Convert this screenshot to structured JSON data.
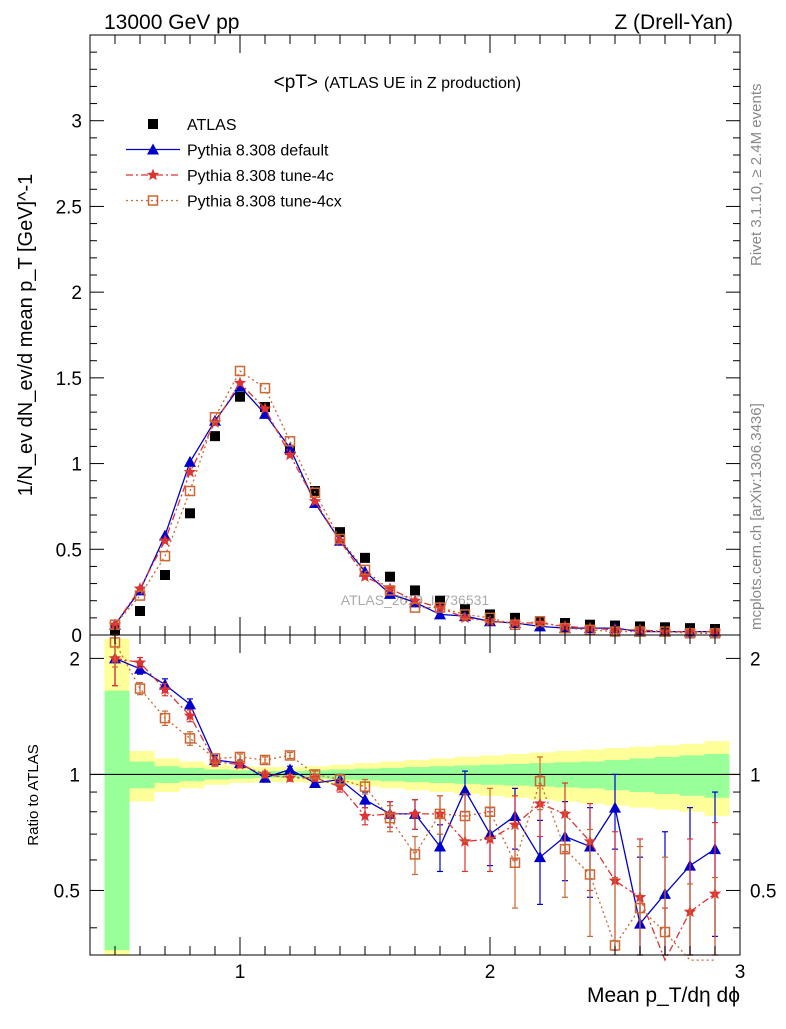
{
  "header": {
    "left": "13000 GeV pp",
    "right": "Z (Drell-Yan)"
  },
  "side": {
    "rivet": "Rivet 3.1.10, ≥ 2.4M events",
    "mcplots": "mcplots.cern.ch [arXiv:1306.3436]"
  },
  "chart_data": [
    {
      "type": "line",
      "title": "<pT>",
      "subtitle": "(ATLAS UE in Z production)",
      "ylabel": "1/N_ev dN_ev/d mean p_T [GeV]^-1",
      "xlim": [
        0.4,
        3.0
      ],
      "ylim": [
        0,
        3.5
      ],
      "grid": false,
      "legend_position": "top-left",
      "watermark": "ATLAS_2019_I1736531",
      "x": [
        0.5,
        0.6,
        0.7,
        0.8,
        0.9,
        1.0,
        1.1,
        1.2,
        1.3,
        1.4,
        1.5,
        1.6,
        1.7,
        1.8,
        1.9,
        2.0,
        2.1,
        2.2,
        2.3,
        2.4,
        2.5,
        2.6,
        2.7,
        2.8,
        2.9
      ],
      "series": [
        {
          "name": "ATLAS",
          "color": "#000000",
          "values": [
            0.03,
            0.14,
            0.35,
            0.71,
            1.16,
            1.39,
            1.33,
            1.08,
            0.84,
            0.6,
            0.45,
            0.34,
            0.26,
            0.2,
            0.15,
            0.12,
            0.1,
            0.08,
            0.07,
            0.06,
            0.055,
            0.05,
            0.045,
            0.04,
            0.035
          ]
        },
        {
          "name": "Pythia 8.308 default",
          "color": "#0000cc",
          "values": [
            0.06,
            0.26,
            0.58,
            1.01,
            1.25,
            1.45,
            1.29,
            1.09,
            0.77,
            0.55,
            0.37,
            0.24,
            0.19,
            0.12,
            0.11,
            0.08,
            0.07,
            0.05,
            0.04,
            0.04,
            0.04,
            0.02,
            0.02,
            0.02,
            0.02
          ]
        },
        {
          "name": "Pythia 8.308 tune-4c",
          "color": "#dd3333",
          "values": [
            0.06,
            0.27,
            0.55,
            0.95,
            1.24,
            1.47,
            1.32,
            1.05,
            0.78,
            0.55,
            0.34,
            0.27,
            0.2,
            0.16,
            0.1,
            0.08,
            0.07,
            0.07,
            0.05,
            0.04,
            0.03,
            0.03,
            0.02,
            0.02,
            0.02
          ]
        },
        {
          "name": "Pythia 8.308 tune-4cx",
          "color": "#cc6633",
          "values": [
            0.06,
            0.23,
            0.46,
            0.84,
            1.27,
            1.54,
            1.44,
            1.13,
            0.83,
            0.56,
            0.38,
            0.26,
            0.16,
            0.16,
            0.12,
            0.1,
            0.06,
            0.08,
            0.04,
            0.03,
            0.02,
            0.02,
            0.02,
            0.01,
            0.01
          ]
        }
      ]
    },
    {
      "type": "line",
      "ylabel": "Ratio to ATLAS",
      "xlabel": "Mean p_T/dη dϕ",
      "xlim": [
        0.4,
        3.0
      ],
      "ylim": [
        0.34,
        2.3
      ],
      "grid": false,
      "x": [
        0.5,
        0.6,
        0.7,
        0.8,
        0.9,
        1.0,
        1.1,
        1.2,
        1.3,
        1.4,
        1.5,
        1.6,
        1.7,
        1.8,
        1.9,
        2.0,
        2.1,
        2.2,
        2.3,
        2.4,
        2.5,
        2.6,
        2.7,
        2.8,
        2.9
      ],
      "band_inner": [
        0.65,
        0.08,
        0.05,
        0.04,
        0.03,
        0.025,
        0.02,
        0.02,
        0.025,
        0.03,
        0.035,
        0.04,
        0.045,
        0.05,
        0.055,
        0.06,
        0.065,
        0.07,
        0.075,
        0.08,
        0.09,
        0.1,
        0.11,
        0.12,
        0.13
      ],
      "band_outer": [
        1.25,
        0.15,
        0.1,
        0.08,
        0.06,
        0.05,
        0.045,
        0.045,
        0.05,
        0.06,
        0.07,
        0.08,
        0.09,
        0.1,
        0.11,
        0.12,
        0.13,
        0.14,
        0.15,
        0.16,
        0.17,
        0.18,
        0.19,
        0.2,
        0.22
      ],
      "series": [
        {
          "name": "Pythia 8.308 default",
          "color": "#0000cc",
          "values": [
            2.0,
            1.88,
            1.71,
            1.52,
            1.09,
            1.07,
            0.98,
            1.03,
            0.95,
            0.97,
            0.86,
            0.79,
            0.79,
            0.65,
            0.91,
            0.7,
            0.78,
            0.61,
            0.69,
            0.65,
            0.82,
            0.41,
            0.49,
            0.58,
            0.64
          ],
          "errors": [
            0.3,
            0.06,
            0.06,
            0.05,
            0.03,
            0.02,
            0.02,
            0.02,
            0.02,
            0.03,
            0.04,
            0.06,
            0.07,
            0.09,
            0.11,
            0.12,
            0.14,
            0.15,
            0.16,
            0.17,
            0.18,
            0.2,
            0.22,
            0.24,
            0.26
          ]
        },
        {
          "name": "Pythia 8.308 tune-4c",
          "color": "#dd3333",
          "values": [
            2.0,
            1.95,
            1.66,
            1.42,
            1.08,
            1.06,
            1.0,
            0.98,
            0.98,
            0.93,
            0.78,
            0.79,
            0.79,
            0.79,
            0.67,
            0.68,
            0.74,
            0.84,
            0.79,
            0.67,
            0.53,
            0.48,
            0.23,
            0.44,
            0.49
          ],
          "errors": [
            0.3,
            0.06,
            0.06,
            0.05,
            0.03,
            0.02,
            0.02,
            0.02,
            0.02,
            0.03,
            0.04,
            0.06,
            0.07,
            0.09,
            0.11,
            0.12,
            0.14,
            0.15,
            0.16,
            0.17,
            0.18,
            0.2,
            0.22,
            0.24,
            0.26
          ]
        },
        {
          "name": "Pythia 8.308 tune-4cx",
          "color": "#cc6633",
          "values": [
            2.2,
            1.67,
            1.4,
            1.24,
            1.1,
            1.11,
            1.09,
            1.12,
            1.0,
            0.97,
            0.93,
            0.77,
            0.62,
            0.79,
            0.78,
            0.8,
            0.59,
            0.96,
            0.64,
            0.55,
            0.36,
            0.45,
            0.39,
            0.28,
            0.28
          ],
          "errors": [
            0.3,
            0.06,
            0.06,
            0.05,
            0.03,
            0.02,
            0.02,
            0.02,
            0.02,
            0.03,
            0.04,
            0.06,
            0.07,
            0.09,
            0.11,
            0.12,
            0.14,
            0.15,
            0.16,
            0.17,
            0.18,
            0.2,
            0.22,
            0.24,
            0.26
          ]
        }
      ]
    }
  ],
  "tick_labels": {
    "main_y": [
      "0",
      "0.5",
      "1",
      "1.5",
      "2",
      "2.5",
      "3"
    ],
    "ratio_y": [
      "0.5",
      "1",
      "2"
    ],
    "x": [
      "1",
      "2",
      "3"
    ]
  }
}
